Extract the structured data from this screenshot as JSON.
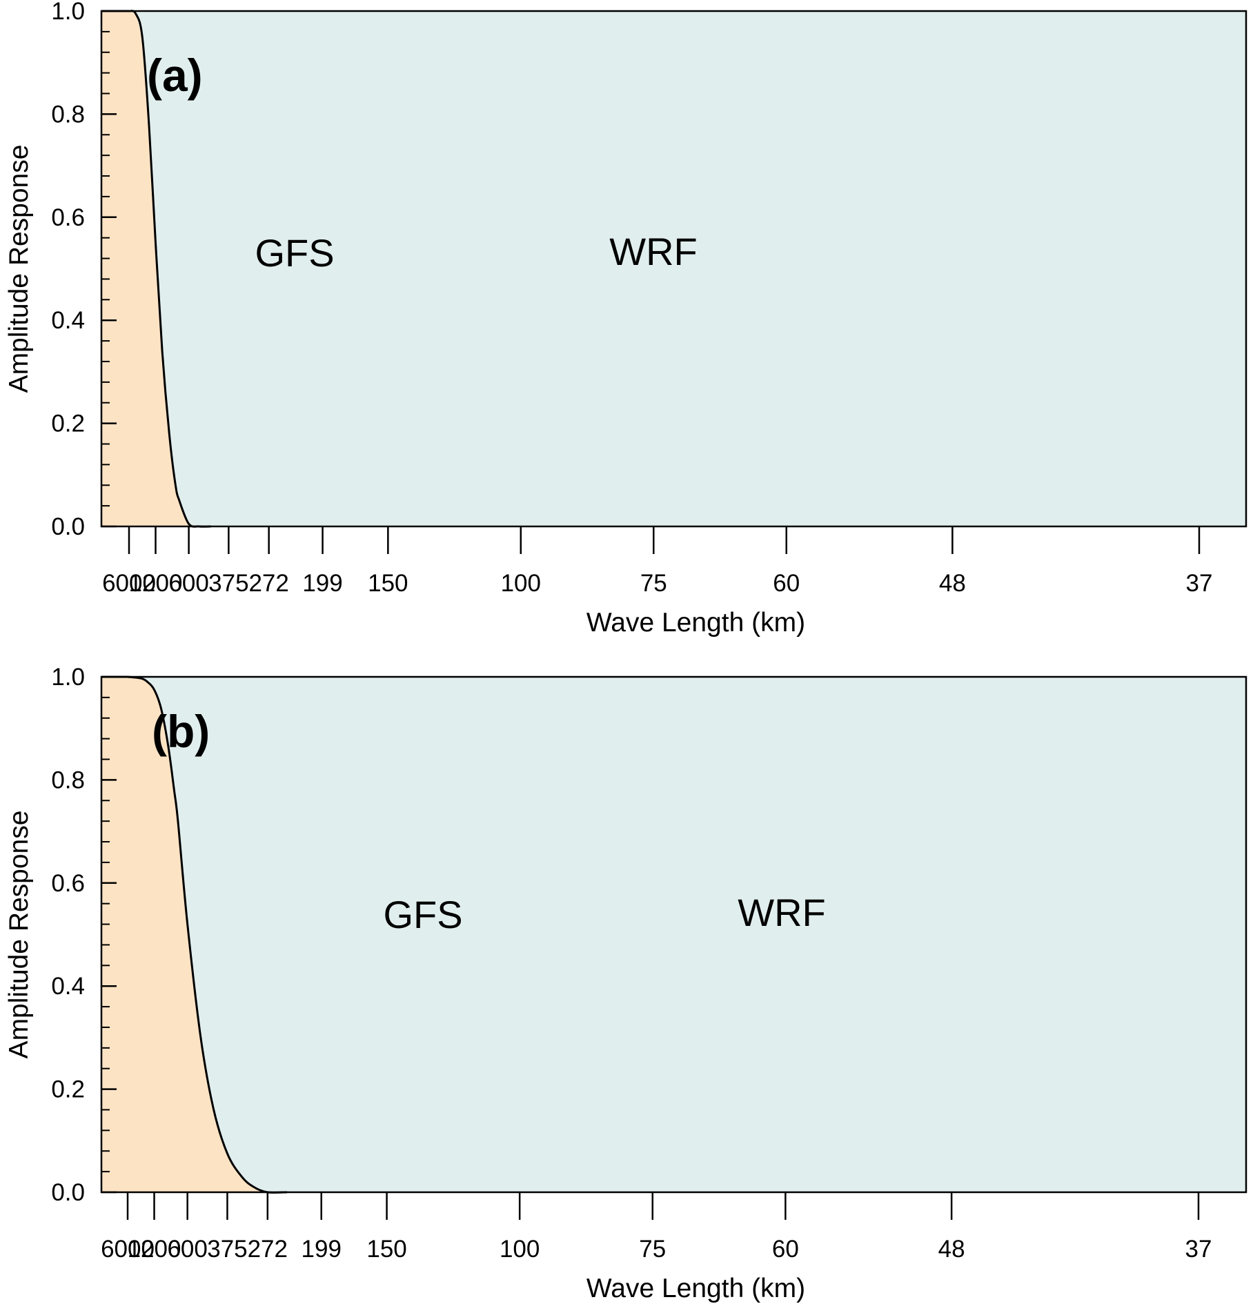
{
  "chart_data": [
    {
      "panel_label": "(a)",
      "type": "area",
      "xlabel": "Wave Length  (km)",
      "ylabel": "Amplitude Response",
      "x_scale": "reciprocal",
      "ylim": [
        0.0,
        1.0
      ],
      "yticks": [
        "0.0",
        "0.2",
        "0.4",
        "0.6",
        "0.8",
        "1.0"
      ],
      "xticks": [
        "6000",
        "1200",
        "600",
        "375",
        "272",
        "199",
        "150",
        "100",
        "75",
        "60",
        "48",
        "37"
      ],
      "regions": [
        {
          "label": "GFS",
          "color": "#fce3c4"
        },
        {
          "label": "WRF",
          "color": "#e1eeee"
        }
      ],
      "curve": {
        "x": [
          6000,
          3000,
          2000,
          1500,
          1200,
          1000,
          850,
          750,
          700,
          600,
          520,
          450
        ],
        "y": [
          1.0,
          0.995,
          0.95,
          0.78,
          0.55,
          0.34,
          0.18,
          0.08,
          0.05,
          0.005,
          0.0,
          0.0
        ]
      }
    },
    {
      "panel_label": "(b)",
      "type": "area",
      "xlabel": "Wave Length  (km)",
      "ylabel": "Amplitude Response",
      "x_scale": "reciprocal",
      "ylim": [
        0.0,
        1.0
      ],
      "yticks": [
        "0.0",
        "0.2",
        "0.4",
        "0.6",
        "0.8",
        "1.0"
      ],
      "xticks": [
        "6000",
        "1200",
        "600",
        "375",
        "272",
        "199",
        "150",
        "100",
        "75",
        "60",
        "48",
        "37"
      ],
      "regions": [
        {
          "label": "GFS",
          "color": "#fce3c4"
        },
        {
          "label": "WRF",
          "color": "#e1eeee"
        }
      ],
      "curve": {
        "x": [
          6000,
          2000,
          1500,
          1200,
          1000,
          850,
          750,
          700,
          600,
          500,
          430,
          375,
          330,
          300,
          272,
          240
        ],
        "y": [
          1.0,
          0.997,
          0.99,
          0.975,
          0.94,
          0.87,
          0.78,
          0.72,
          0.52,
          0.3,
          0.16,
          0.075,
          0.03,
          0.01,
          0.0,
          0.0
        ]
      }
    }
  ]
}
